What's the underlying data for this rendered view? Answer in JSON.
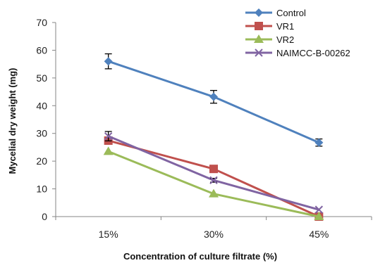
{
  "chart_data": {
    "type": "line",
    "title": "",
    "xlabel": "Concentration of culture filtrate (%)",
    "ylabel": "Mycelial dry weight (mg)",
    "categories": [
      "15%",
      "30%",
      "45%"
    ],
    "ylim": [
      0,
      70
    ],
    "yticks": [
      0,
      10,
      20,
      30,
      40,
      50,
      60,
      70
    ],
    "grid": false,
    "legend_position": "top-right",
    "series": [
      {
        "name": "Control",
        "values": [
          56,
          43.2,
          26.7
        ],
        "errors": [
          2.7,
          2.3,
          1.3
        ],
        "color": "#4f81bd",
        "marker": "diamond"
      },
      {
        "name": "VR1",
        "values": [
          27.4,
          17.2,
          0
        ],
        "errors": [
          0,
          0,
          0
        ],
        "color": "#c0504d",
        "marker": "square"
      },
      {
        "name": "VR2",
        "values": [
          23.5,
          8.2,
          0
        ],
        "errors": [
          0,
          0,
          0
        ],
        "color": "#9bbb59",
        "marker": "triangle"
      },
      {
        "name": "NAIMCC-B-00262",
        "values": [
          29,
          13.1,
          2.5
        ],
        "errors": [
          1.7,
          0.7,
          0
        ],
        "color": "#8064a2",
        "marker": "x"
      }
    ]
  }
}
